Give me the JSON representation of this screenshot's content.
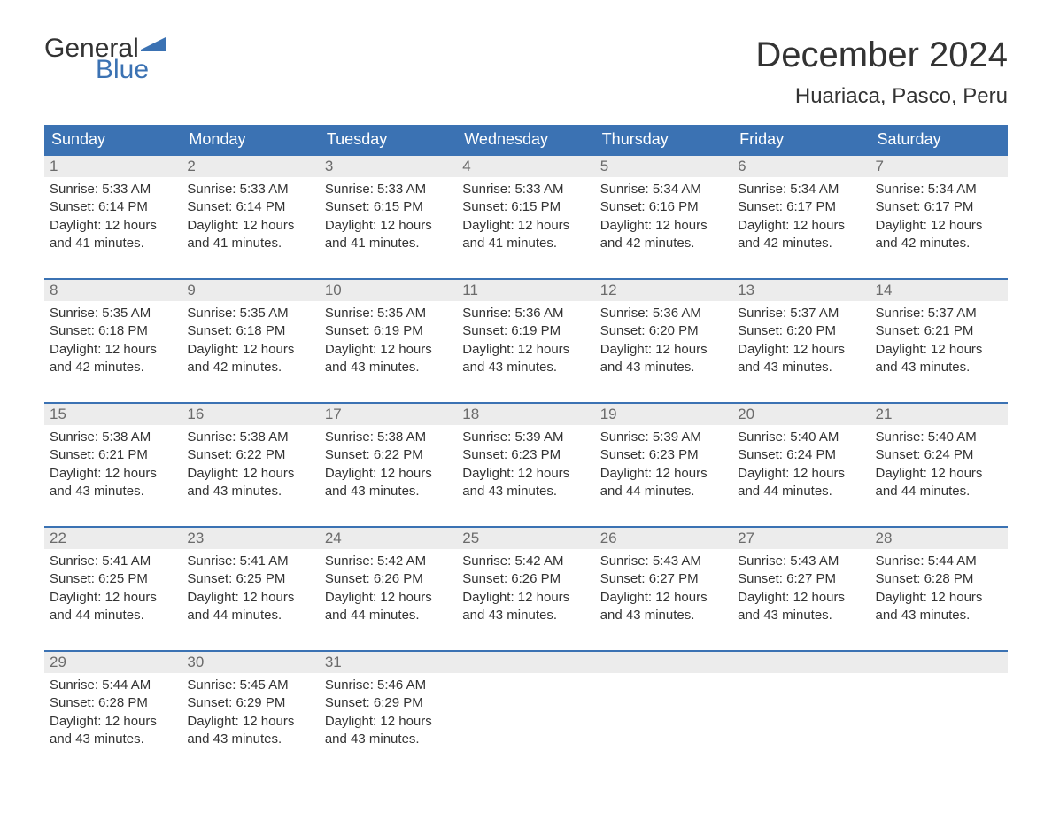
{
  "logo": {
    "text1": "General",
    "text2": "Blue",
    "flag_color": "#3b72b3"
  },
  "title": "December 2024",
  "location": "Huariaca, Pasco, Peru",
  "colors": {
    "header_bg": "#3b72b3",
    "header_text": "#ffffff",
    "daynum_bg": "#ececec",
    "daynum_text": "#6b6b6b",
    "body_text": "#333333",
    "page_bg": "#ffffff",
    "week_border": "#3b72b3"
  },
  "fonts": {
    "title_size_pt": 30,
    "location_size_pt": 18,
    "weekday_size_pt": 14,
    "daynum_size_pt": 13,
    "body_size_pt": 11
  },
  "weekdays": [
    "Sunday",
    "Monday",
    "Tuesday",
    "Wednesday",
    "Thursday",
    "Friday",
    "Saturday"
  ],
  "weeks": [
    [
      {
        "n": "1",
        "sunrise": "Sunrise: 5:33 AM",
        "sunset": "Sunset: 6:14 PM",
        "d1": "Daylight: 12 hours",
        "d2": "and 41 minutes."
      },
      {
        "n": "2",
        "sunrise": "Sunrise: 5:33 AM",
        "sunset": "Sunset: 6:14 PM",
        "d1": "Daylight: 12 hours",
        "d2": "and 41 minutes."
      },
      {
        "n": "3",
        "sunrise": "Sunrise: 5:33 AM",
        "sunset": "Sunset: 6:15 PM",
        "d1": "Daylight: 12 hours",
        "d2": "and 41 minutes."
      },
      {
        "n": "4",
        "sunrise": "Sunrise: 5:33 AM",
        "sunset": "Sunset: 6:15 PM",
        "d1": "Daylight: 12 hours",
        "d2": "and 41 minutes."
      },
      {
        "n": "5",
        "sunrise": "Sunrise: 5:34 AM",
        "sunset": "Sunset: 6:16 PM",
        "d1": "Daylight: 12 hours",
        "d2": "and 42 minutes."
      },
      {
        "n": "6",
        "sunrise": "Sunrise: 5:34 AM",
        "sunset": "Sunset: 6:17 PM",
        "d1": "Daylight: 12 hours",
        "d2": "and 42 minutes."
      },
      {
        "n": "7",
        "sunrise": "Sunrise: 5:34 AM",
        "sunset": "Sunset: 6:17 PM",
        "d1": "Daylight: 12 hours",
        "d2": "and 42 minutes."
      }
    ],
    [
      {
        "n": "8",
        "sunrise": "Sunrise: 5:35 AM",
        "sunset": "Sunset: 6:18 PM",
        "d1": "Daylight: 12 hours",
        "d2": "and 42 minutes."
      },
      {
        "n": "9",
        "sunrise": "Sunrise: 5:35 AM",
        "sunset": "Sunset: 6:18 PM",
        "d1": "Daylight: 12 hours",
        "d2": "and 42 minutes."
      },
      {
        "n": "10",
        "sunrise": "Sunrise: 5:35 AM",
        "sunset": "Sunset: 6:19 PM",
        "d1": "Daylight: 12 hours",
        "d2": "and 43 minutes."
      },
      {
        "n": "11",
        "sunrise": "Sunrise: 5:36 AM",
        "sunset": "Sunset: 6:19 PM",
        "d1": "Daylight: 12 hours",
        "d2": "and 43 minutes."
      },
      {
        "n": "12",
        "sunrise": "Sunrise: 5:36 AM",
        "sunset": "Sunset: 6:20 PM",
        "d1": "Daylight: 12 hours",
        "d2": "and 43 minutes."
      },
      {
        "n": "13",
        "sunrise": "Sunrise: 5:37 AM",
        "sunset": "Sunset: 6:20 PM",
        "d1": "Daylight: 12 hours",
        "d2": "and 43 minutes."
      },
      {
        "n": "14",
        "sunrise": "Sunrise: 5:37 AM",
        "sunset": "Sunset: 6:21 PM",
        "d1": "Daylight: 12 hours",
        "d2": "and 43 minutes."
      }
    ],
    [
      {
        "n": "15",
        "sunrise": "Sunrise: 5:38 AM",
        "sunset": "Sunset: 6:21 PM",
        "d1": "Daylight: 12 hours",
        "d2": "and 43 minutes."
      },
      {
        "n": "16",
        "sunrise": "Sunrise: 5:38 AM",
        "sunset": "Sunset: 6:22 PM",
        "d1": "Daylight: 12 hours",
        "d2": "and 43 minutes."
      },
      {
        "n": "17",
        "sunrise": "Sunrise: 5:38 AM",
        "sunset": "Sunset: 6:22 PM",
        "d1": "Daylight: 12 hours",
        "d2": "and 43 minutes."
      },
      {
        "n": "18",
        "sunrise": "Sunrise: 5:39 AM",
        "sunset": "Sunset: 6:23 PM",
        "d1": "Daylight: 12 hours",
        "d2": "and 43 minutes."
      },
      {
        "n": "19",
        "sunrise": "Sunrise: 5:39 AM",
        "sunset": "Sunset: 6:23 PM",
        "d1": "Daylight: 12 hours",
        "d2": "and 44 minutes."
      },
      {
        "n": "20",
        "sunrise": "Sunrise: 5:40 AM",
        "sunset": "Sunset: 6:24 PM",
        "d1": "Daylight: 12 hours",
        "d2": "and 44 minutes."
      },
      {
        "n": "21",
        "sunrise": "Sunrise: 5:40 AM",
        "sunset": "Sunset: 6:24 PM",
        "d1": "Daylight: 12 hours",
        "d2": "and 44 minutes."
      }
    ],
    [
      {
        "n": "22",
        "sunrise": "Sunrise: 5:41 AM",
        "sunset": "Sunset: 6:25 PM",
        "d1": "Daylight: 12 hours",
        "d2": "and 44 minutes."
      },
      {
        "n": "23",
        "sunrise": "Sunrise: 5:41 AM",
        "sunset": "Sunset: 6:25 PM",
        "d1": "Daylight: 12 hours",
        "d2": "and 44 minutes."
      },
      {
        "n": "24",
        "sunrise": "Sunrise: 5:42 AM",
        "sunset": "Sunset: 6:26 PM",
        "d1": "Daylight: 12 hours",
        "d2": "and 44 minutes."
      },
      {
        "n": "25",
        "sunrise": "Sunrise: 5:42 AM",
        "sunset": "Sunset: 6:26 PM",
        "d1": "Daylight: 12 hours",
        "d2": "and 43 minutes."
      },
      {
        "n": "26",
        "sunrise": "Sunrise: 5:43 AM",
        "sunset": "Sunset: 6:27 PM",
        "d1": "Daylight: 12 hours",
        "d2": "and 43 minutes."
      },
      {
        "n": "27",
        "sunrise": "Sunrise: 5:43 AM",
        "sunset": "Sunset: 6:27 PM",
        "d1": "Daylight: 12 hours",
        "d2": "and 43 minutes."
      },
      {
        "n": "28",
        "sunrise": "Sunrise: 5:44 AM",
        "sunset": "Sunset: 6:28 PM",
        "d1": "Daylight: 12 hours",
        "d2": "and 43 minutes."
      }
    ],
    [
      {
        "n": "29",
        "sunrise": "Sunrise: 5:44 AM",
        "sunset": "Sunset: 6:28 PM",
        "d1": "Daylight: 12 hours",
        "d2": "and 43 minutes."
      },
      {
        "n": "30",
        "sunrise": "Sunrise: 5:45 AM",
        "sunset": "Sunset: 6:29 PM",
        "d1": "Daylight: 12 hours",
        "d2": "and 43 minutes."
      },
      {
        "n": "31",
        "sunrise": "Sunrise: 5:46 AM",
        "sunset": "Sunset: 6:29 PM",
        "d1": "Daylight: 12 hours",
        "d2": "and 43 minutes."
      },
      {
        "empty": true
      },
      {
        "empty": true
      },
      {
        "empty": true
      },
      {
        "empty": true
      }
    ]
  ]
}
